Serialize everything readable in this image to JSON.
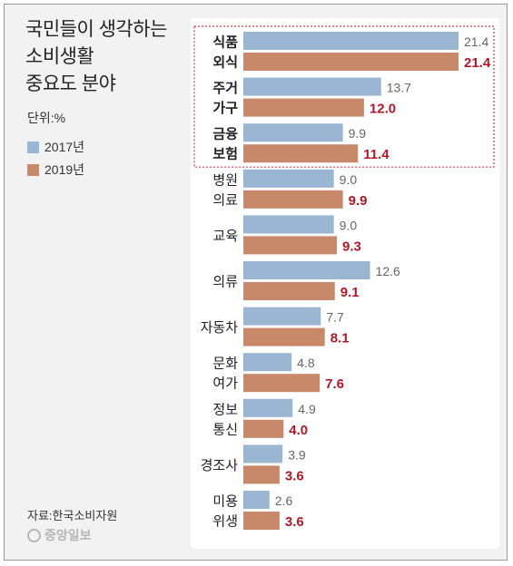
{
  "header": {
    "title_lines": [
      "국민들이 생각하는",
      "소비생활",
      "중요도 분야"
    ],
    "unit": "단위:%"
  },
  "footer": {
    "source": "자료:한국소비자원",
    "logo": "중앙일보"
  },
  "colors": {
    "bar_2017": "#9bb6d3",
    "bar_2019": "#c8896a",
    "label_2017": "#666666",
    "label_2019": "#b0182a",
    "highlight_border": "#d9354a",
    "plot_bg": "#ffffff"
  },
  "chart_data": {
    "type": "bar",
    "orientation": "horizontal",
    "categories": [
      [
        "식품",
        "외식"
      ],
      [
        "주거",
        "가구"
      ],
      [
        "금융",
        "보험"
      ],
      [
        "병원",
        "의료"
      ],
      [
        "교육"
      ],
      [
        "의류"
      ],
      [
        "자동차"
      ],
      [
        "문화",
        "여가"
      ],
      [
        "정보",
        "통신"
      ],
      [
        "경조사"
      ],
      [
        "미용",
        "위생"
      ]
    ],
    "highlighted": [
      0,
      1,
      2
    ],
    "series": [
      {
        "name": "2017년",
        "values": [
          21.4,
          13.7,
          9.9,
          9.0,
          9.0,
          12.6,
          7.7,
          4.8,
          4.9,
          3.9,
          2.6
        ],
        "labels": [
          "21.4",
          "13.7",
          "9.9",
          "9.0",
          "9.0",
          "12.6",
          "7.7",
          "4.8",
          "4.9",
          "3.9",
          "2.6"
        ]
      },
      {
        "name": "2019년",
        "values": [
          21.4,
          12.0,
          11.4,
          9.9,
          9.3,
          9.1,
          8.1,
          7.6,
          4.0,
          3.6,
          3.6
        ],
        "labels": [
          "21.4",
          "12.0",
          "11.4",
          "9.9",
          "9.3",
          "9.1",
          "8.1",
          "7.6",
          "4.0",
          "3.6",
          "3.6"
        ]
      }
    ],
    "xlim": [
      0,
      21.4
    ],
    "grid": false,
    "legend_position": "left"
  }
}
